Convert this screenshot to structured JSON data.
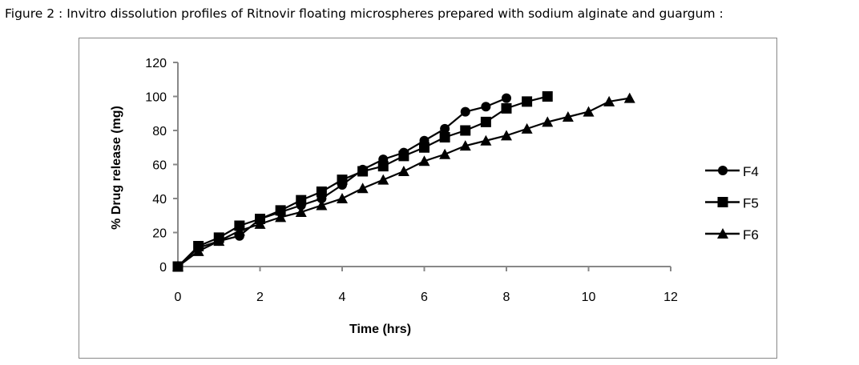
{
  "title": "Figure 2 : Invitro dissolution profiles of Ritnovir  floating microspheres prepared with sodium alginate and guargum :",
  "chart_data": {
    "type": "line",
    "title": "Figure 2 : Invitro dissolution profiles of Ritnovir  floating microspheres prepared with sodium alginate and guargum :",
    "xlabel": "Time (hrs)",
    "ylabel": "% Drug release (mg)",
    "xlim": [
      0,
      12
    ],
    "ylim": [
      0,
      120
    ],
    "xticks": [
      0,
      2,
      4,
      6,
      8,
      10,
      12
    ],
    "yticks": [
      0,
      20,
      40,
      60,
      80,
      100,
      120
    ],
    "grid": false,
    "legend_position": "right",
    "series": [
      {
        "name": "F4",
        "marker": "circle",
        "x": [
          0,
          0.5,
          1,
          1.5,
          2,
          2.5,
          3,
          3.5,
          4,
          4.5,
          5,
          5.5,
          6,
          6.5,
          7,
          7.5,
          8
        ],
        "y": [
          0,
          11,
          15,
          18,
          28,
          32,
          36,
          40,
          48,
          57,
          63,
          67,
          74,
          81,
          91,
          94,
          99
        ]
      },
      {
        "name": "F5",
        "marker": "square",
        "x": [
          0,
          0.5,
          1,
          1.5,
          2,
          2.5,
          3,
          3.5,
          4,
          4.5,
          5,
          5.5,
          6,
          6.5,
          7,
          7.5,
          8,
          8.5,
          9
        ],
        "y": [
          0,
          12,
          17,
          24,
          28,
          33,
          39,
          44,
          51,
          56,
          59,
          65,
          70,
          76,
          80,
          85,
          93,
          97,
          100
        ]
      },
      {
        "name": "F6",
        "marker": "triangle",
        "x": [
          0,
          0.5,
          1,
          1.5,
          2,
          2.5,
          3,
          3.5,
          4,
          4.5,
          5,
          5.5,
          6,
          6.5,
          7,
          7.5,
          8,
          8.5,
          9,
          9.5,
          10,
          10.5,
          11
        ],
        "y": [
          0,
          9,
          15,
          21,
          25,
          29,
          32,
          36,
          40,
          46,
          51,
          56,
          62,
          66,
          71,
          74,
          77,
          81,
          85,
          88,
          91,
          97,
          99
        ]
      }
    ]
  }
}
